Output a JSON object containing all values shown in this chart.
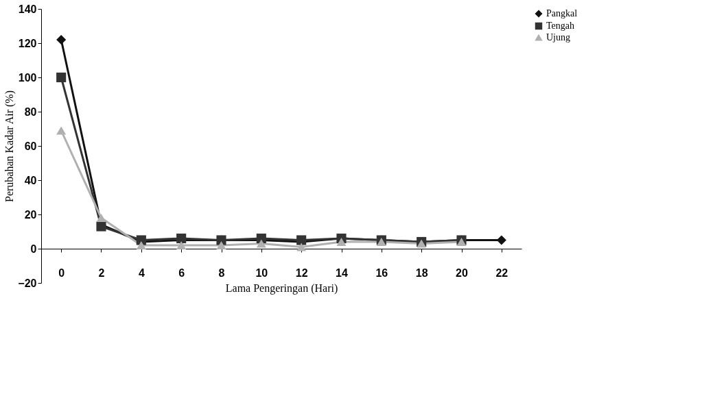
{
  "chart_data": {
    "type": "line",
    "xlabel": "Lama Pengeringan (Hari)",
    "ylabel": "Perubahan Kadar Air (%)",
    "categories": [
      "0",
      "2",
      "4",
      "6",
      "8",
      "10",
      "12",
      "14",
      "16",
      "18",
      "20",
      "22"
    ],
    "series": [
      {
        "name": "Pangkal",
        "color": "#111111",
        "marker": "diamond",
        "values": [
          122,
          14,
          4,
          5,
          5,
          5,
          4,
          6,
          5,
          4,
          5,
          5
        ]
      },
      {
        "name": "Tengah",
        "color": "#333333",
        "marker": "square",
        "values": [
          100,
          13,
          5,
          6,
          5,
          6,
          5,
          6,
          5,
          4,
          5,
          null
        ]
      },
      {
        "name": "Ujung",
        "color": "#b0b0b0",
        "marker": "triangle",
        "values": [
          69,
          18,
          2,
          2,
          2,
          3,
          1,
          4,
          4,
          3,
          4,
          null
        ]
      }
    ],
    "ylim": [
      -20,
      140
    ],
    "yticks": [
      -20,
      0,
      20,
      40,
      60,
      80,
      100,
      120,
      140
    ],
    "grid": false,
    "legend": "right",
    "line_style": "solid"
  }
}
